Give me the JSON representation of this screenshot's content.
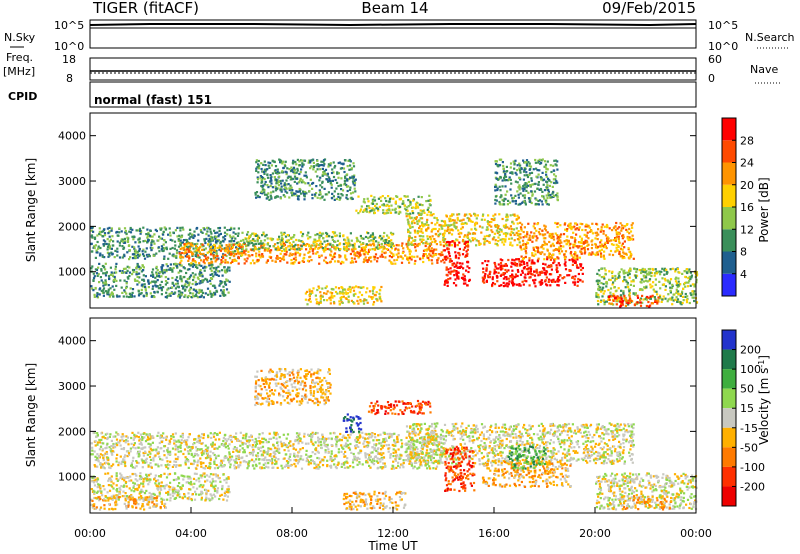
{
  "header": {
    "radar": "TIGER (fitACF)",
    "beam": "Beam 14",
    "date": "09/Feb/2015"
  },
  "status_panels": {
    "noise": {
      "left_label": "N.Sky",
      "right_label": "N.Search",
      "left_ticks": [
        "10^5",
        "10^0"
      ],
      "right_ticks": [
        "10^5",
        "10^0"
      ]
    },
    "freq": {
      "left_label_1": "Freq.",
      "left_label_2": "[MHz]",
      "right_label": "Nave",
      "left_ticks": [
        "18",
        "8"
      ],
      "right_ticks": [
        "60",
        "0"
      ]
    },
    "cpid": {
      "label": "CPID",
      "text": "normal (fast) 151"
    }
  },
  "chart_data": [
    {
      "type": "heatmap",
      "title": "",
      "ylabel": "Slant Range [km]",
      "ylim": [
        200,
        4500
      ],
      "yticks": [
        1000,
        2000,
        3000,
        4000
      ],
      "xlim": [
        0,
        24
      ],
      "colorbar": {
        "label": "Power [dB]",
        "ticks": [
          4,
          8,
          12,
          16,
          20,
          24,
          28
        ],
        "range": [
          0,
          32
        ],
        "colors": [
          "#2b2bff",
          "#1f5f8f",
          "#3a8f5a",
          "#8fc84a",
          "#ffd000",
          "#ff9400",
          "#ff4a00",
          "#ff0000"
        ]
      },
      "echo_regions": [
        {
          "t0": 0.0,
          "t1": 6.0,
          "r0": 1300,
          "r1": 2000,
          "level": 2
        },
        {
          "t0": 0.0,
          "t1": 5.5,
          "r0": 450,
          "r1": 1200,
          "level": 2
        },
        {
          "t0": 3.5,
          "t1": 14.0,
          "r0": 1200,
          "r1": 1650,
          "level": 5
        },
        {
          "t0": 6.0,
          "t1": 12.0,
          "r0": 1500,
          "r1": 1900,
          "level": 3
        },
        {
          "t0": 6.5,
          "t1": 10.5,
          "r0": 2600,
          "r1": 3500,
          "level": 2
        },
        {
          "t0": 10.5,
          "t1": 13.5,
          "r0": 2300,
          "r1": 2700,
          "level": 3
        },
        {
          "t0": 8.5,
          "t1": 11.5,
          "r0": 300,
          "r1": 700,
          "level": 4
        },
        {
          "t0": 12.5,
          "t1": 17.0,
          "r0": 1600,
          "r1": 2300,
          "level": 4
        },
        {
          "t0": 14.0,
          "t1": 15.0,
          "r0": 700,
          "r1": 1700,
          "level": 7
        },
        {
          "t0": 15.5,
          "t1": 19.5,
          "r0": 700,
          "r1": 1300,
          "level": 7
        },
        {
          "t0": 17.0,
          "t1": 21.5,
          "r0": 1300,
          "r1": 2100,
          "level": 5
        },
        {
          "t0": 16.0,
          "t1": 18.5,
          "r0": 2500,
          "r1": 3500,
          "level": 2
        },
        {
          "t0": 20.0,
          "t1": 24.0,
          "r0": 300,
          "r1": 1100,
          "level": 3
        },
        {
          "t0": 20.5,
          "t1": 22.5,
          "r0": 250,
          "r1": 500,
          "level": 6
        }
      ]
    },
    {
      "type": "heatmap",
      "title": "",
      "ylabel": "Slant Range [km]",
      "xlabel": "Time UT",
      "ylim": [
        200,
        4500
      ],
      "yticks": [
        1000,
        2000,
        3000,
        4000
      ],
      "xlim": [
        0,
        24
      ],
      "xticks": [
        "00:00",
        "04:00",
        "08:00",
        "12:00",
        "16:00",
        "20:00",
        "00:00"
      ],
      "colorbar": {
        "label": "Velocity [m s^-1]",
        "ticks": [
          "200",
          "100",
          "50",
          "15",
          "-15",
          "-50",
          "-100",
          "-200"
        ],
        "colors": [
          "#2233cc",
          "#1f7a4a",
          "#3fae3f",
          "#8fd84f",
          "#c8c8c0",
          "#ffb000",
          "#ff7a00",
          "#ff3000",
          "#ee0000"
        ]
      },
      "echo_regions": [
        {
          "t0": 0.0,
          "t1": 14.0,
          "r0": 1200,
          "r1": 2000,
          "level": 4
        },
        {
          "t0": 0.0,
          "t1": 5.5,
          "r0": 500,
          "r1": 1100,
          "level": 4
        },
        {
          "t0": 0.0,
          "t1": 3.0,
          "r0": 300,
          "r1": 600,
          "level": 5
        },
        {
          "t0": 6.5,
          "t1": 9.5,
          "r0": 2600,
          "r1": 3400,
          "level": 5
        },
        {
          "t0": 10.0,
          "t1": 10.7,
          "r0": 2000,
          "r1": 2400,
          "level": 0
        },
        {
          "t0": 11.0,
          "t1": 13.5,
          "r0": 2400,
          "r1": 2700,
          "level": 7
        },
        {
          "t0": 12.5,
          "t1": 21.5,
          "r0": 1300,
          "r1": 2200,
          "level": 4
        },
        {
          "t0": 14.0,
          "t1": 15.2,
          "r0": 700,
          "r1": 1700,
          "level": 7
        },
        {
          "t0": 15.5,
          "t1": 19.0,
          "r0": 800,
          "r1": 1400,
          "level": 5
        },
        {
          "t0": 16.5,
          "t1": 18.0,
          "r0": 1200,
          "r1": 1700,
          "level": 2
        },
        {
          "t0": 10.0,
          "t1": 12.5,
          "r0": 300,
          "r1": 700,
          "level": 5
        },
        {
          "t0": 20.0,
          "t1": 24.0,
          "r0": 300,
          "r1": 1100,
          "level": 4
        },
        {
          "t0": 21.0,
          "t1": 23.0,
          "r0": 300,
          "r1": 600,
          "level": 5
        }
      ]
    }
  ]
}
